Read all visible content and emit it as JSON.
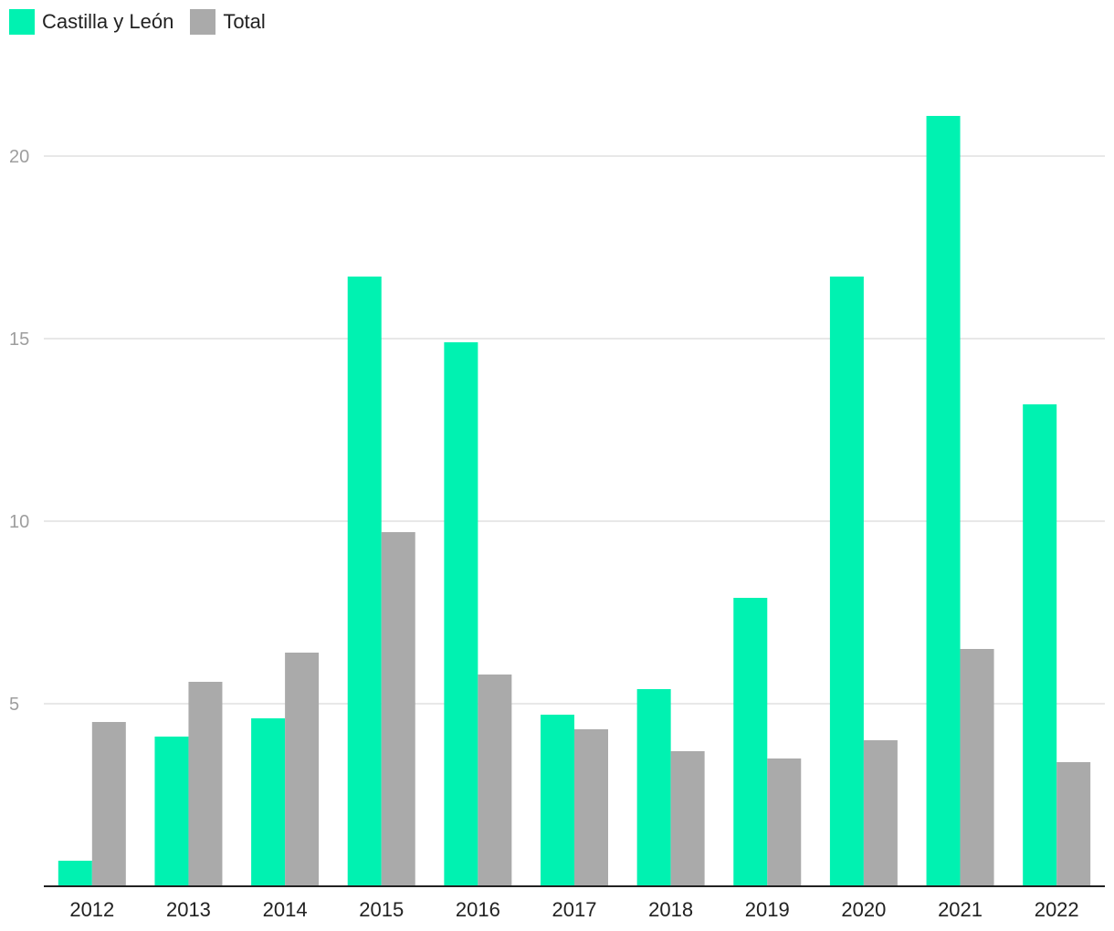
{
  "colors": {
    "castilla": "#00f2b1",
    "total": "#aaaaaa",
    "grid": "#e0e0e0",
    "axis": "#222222"
  },
  "chart_data": {
    "type": "bar",
    "categories": [
      "2012",
      "2013",
      "2014",
      "2015",
      "2016",
      "2017",
      "2018",
      "2019",
      "2020",
      "2021",
      "2022"
    ],
    "series": [
      {
        "name": "Castilla y León",
        "values": [
          0.7,
          4.1,
          4.6,
          16.7,
          14.9,
          4.7,
          5.4,
          7.9,
          16.7,
          21.1,
          13.2
        ]
      },
      {
        "name": "Total",
        "values": [
          4.5,
          5.6,
          6.4,
          9.7,
          5.8,
          4.3,
          3.7,
          3.5,
          4.0,
          6.5,
          3.4
        ]
      }
    ],
    "y_ticks": [
      "5",
      "10",
      "15",
      "20"
    ],
    "ylim": [
      0,
      22
    ],
    "grid": true,
    "legend_position": "top-left"
  }
}
